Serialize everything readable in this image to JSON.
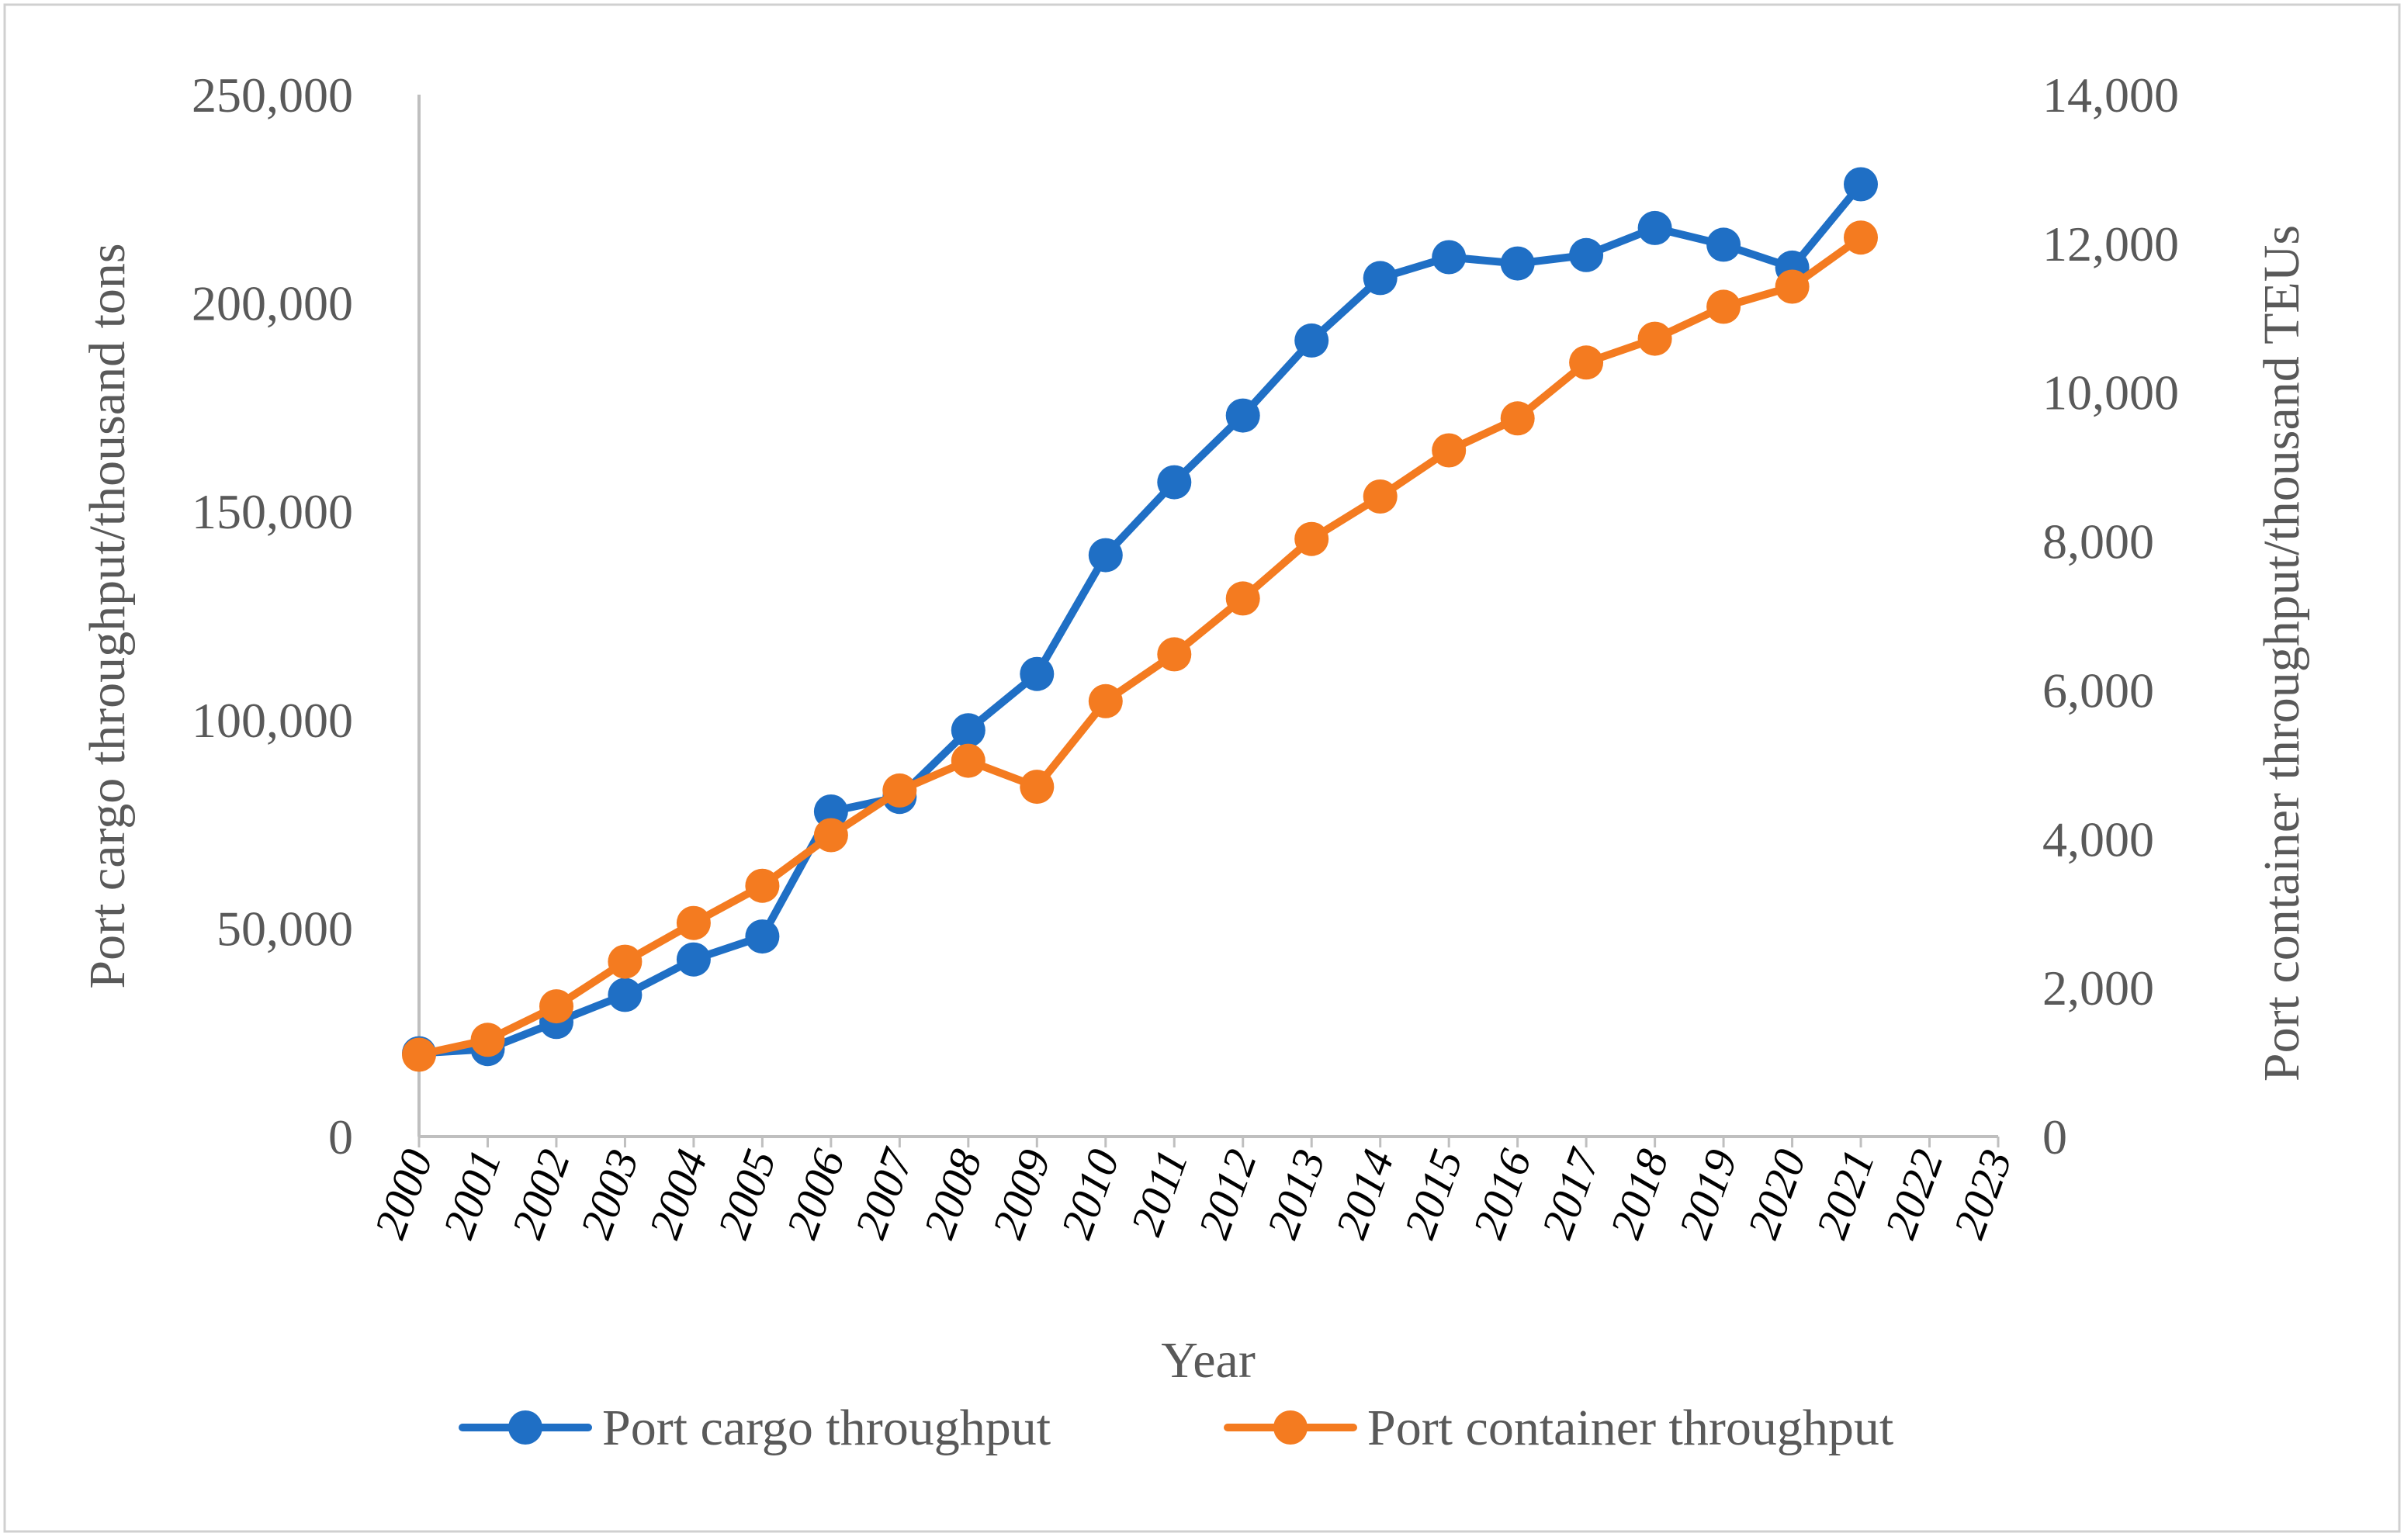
{
  "chart_data": {
    "type": "line",
    "title": "",
    "xlabel": "Year",
    "ylabel_left": "Port cargo throughput/thousand tons",
    "ylabel_right": "Port container throughput/thousand TEUs",
    "categories": [
      "2000",
      "2001",
      "2002",
      "2003",
      "2004",
      "2005",
      "2006",
      "2007",
      "2008",
      "2009",
      "2010",
      "2011",
      "2012",
      "2013",
      "2014",
      "2015",
      "2016",
      "2017",
      "2018",
      "2019",
      "2020",
      "2021",
      "2022",
      "2023"
    ],
    "ylim_left": [
      0,
      250000
    ],
    "yticks_left": [
      0,
      50000,
      100000,
      150000,
      200000,
      250000
    ],
    "ytick_labels_left": [
      "0",
      "50,000",
      "100,000",
      "150,000",
      "200,000",
      "250,000"
    ],
    "ylim_right": [
      0,
      14000
    ],
    "yticks_right": [
      0,
      2000,
      4000,
      6000,
      8000,
      10000,
      12000,
      14000
    ],
    "ytick_labels_right": [
      "0",
      "2,000",
      "4,000",
      "6,000",
      "8,000",
      "10,000",
      "12,000",
      "14,000"
    ],
    "grid": false,
    "legend_position": "bottom",
    "series": [
      {
        "name": "Port cargo throughput",
        "axis": "left",
        "color": "#1F6FC5",
        "values": [
          20000,
          21000,
          27500,
          34000,
          42500,
          48000,
          78000,
          81500,
          97500,
          111000,
          139500,
          157000,
          173000,
          191000,
          206000,
          211000,
          209500,
          211500,
          218000,
          214000,
          208500,
          228500,
          null,
          null
        ]
      },
      {
        "name": "Port container throughput",
        "axis": "right",
        "color": "#F47B20",
        "values": [
          1100,
          1300,
          1750,
          2350,
          2870,
          3370,
          4050,
          4650,
          5050,
          4700,
          5850,
          6480,
          7230,
          8030,
          8600,
          9220,
          9650,
          10400,
          10720,
          11150,
          11420,
          12080,
          null,
          null
        ]
      }
    ]
  }
}
